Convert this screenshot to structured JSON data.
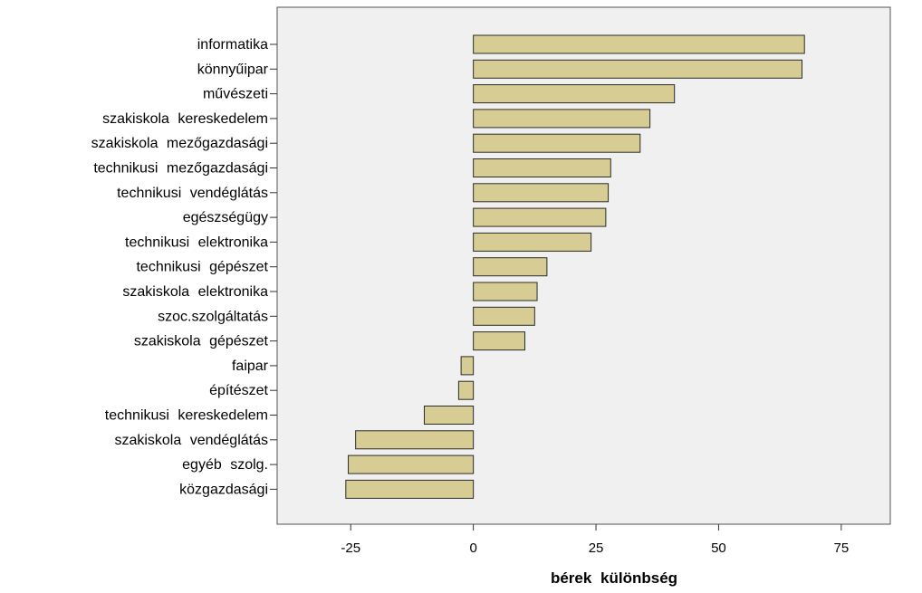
{
  "chart_data": {
    "type": "bar",
    "orientation": "horizontal",
    "categories": [
      "informatika",
      "könnyűipar",
      "művészeti",
      "szakiskola kereskedelem",
      "szakiskola mezőgazdasági",
      "technikusi mezőgazdasági",
      "technikusi vendéglátás",
      "egészségügy",
      "technikusi elektronika",
      "technikusi gépészet",
      "szakiskola elektronika",
      "szoc.szolgáltatás",
      "szakiskola gépészet",
      "faipar",
      "építészet",
      "technikusi kereskedelem",
      "szakiskola vendéglátás",
      "egyéb szolg.",
      "közgazdasági"
    ],
    "values": [
      67.5,
      67,
      41,
      36,
      34,
      28,
      27.5,
      27,
      24,
      15,
      13,
      12.5,
      10.5,
      -2.5,
      -3,
      -10,
      -24,
      -25.5,
      -26
    ],
    "xlabel": "bérek különbség",
    "ylabel": "",
    "xlim": [
      -40,
      85
    ],
    "xticks": [
      -25,
      0,
      25,
      50,
      75
    ],
    "grid": false,
    "colors": {
      "bar_fill": "#d6cc94",
      "bar_stroke": "#2b2b2b",
      "plot_background": "#f0f0f0",
      "axis": "#555555"
    }
  }
}
